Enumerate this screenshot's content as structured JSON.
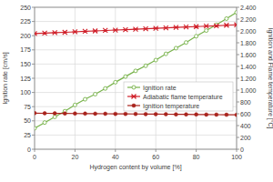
{
  "chart_data": {
    "type": "line",
    "x_label": "Hydrogen content by volume [%]",
    "y_label": "Ignition rate [cm/s]",
    "y2_label": "Ignition and Flame temperature [°C]",
    "x": [
      0,
      5,
      10,
      15,
      20,
      25,
      30,
      35,
      40,
      45,
      50,
      55,
      60,
      65,
      70,
      75,
      80,
      85,
      90,
      95,
      100
    ],
    "series": [
      {
        "name": "Ignition rate",
        "color": "#77b24a",
        "marker": "circle-open",
        "line_style": "solid",
        "values": [
          37,
          47,
          57,
          67,
          78,
          88,
          97,
          107,
          118,
          128,
          138,
          147,
          157,
          168,
          178,
          188,
          199,
          209,
          219,
          230,
          241
        ]
      },
      {
        "name": "Adiabatic flame temperature",
        "color": "#d0202a",
        "marker": "cross",
        "line_style": "solid",
        "axis": "y2",
        "values": [
          1955,
          1962,
          1970,
          1977,
          1985,
          1993,
          2000,
          2008,
          2015,
          2022,
          2030,
          2037,
          2044,
          2052,
          2059,
          2066,
          2073,
          2081,
          2088,
          2096,
          2104
        ]
      },
      {
        "name": "Ignition temperature",
        "color": "#a8231c",
        "marker": "circle",
        "line_style": "solid",
        "axis": "y2",
        "values": [
          610,
          608,
          607,
          605,
          604,
          602,
          601,
          600,
          598,
          597,
          596,
          594,
          593,
          592,
          590,
          589,
          588,
          586,
          585,
          583,
          582
        ]
      }
    ],
    "xlim": [
      0,
      100
    ],
    "xticks": [
      0,
      20,
      40,
      60,
      80,
      100
    ],
    "ylim": [
      0,
      250
    ],
    "yticks": [
      0,
      25,
      50,
      75,
      100,
      125,
      150,
      175,
      200,
      225,
      250
    ],
    "y2lim": [
      0,
      2400
    ],
    "y2ticks": [
      0,
      200,
      400,
      600,
      800,
      {
        "value": 1000,
        "label": "1.000"
      },
      {
        "value": 1200,
        "label": "1.200"
      },
      {
        "value": 1400,
        "label": "1.400"
      },
      {
        "value": 1600,
        "label": "1.600"
      },
      {
        "value": 1800,
        "label": "1.800"
      },
      {
        "value": 2000,
        "label": "2.000"
      },
      {
        "value": 2200,
        "label": "2.200"
      },
      {
        "value": 2400,
        "label": "2.400"
      }
    ],
    "grid": true,
    "legend": "lower-right"
  }
}
